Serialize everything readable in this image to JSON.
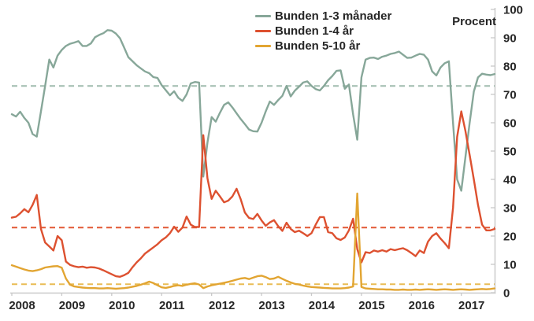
{
  "chart_data": {
    "type": "line",
    "title": "",
    "ylabel": "Procent",
    "ylim": [
      0,
      100
    ],
    "ytick_step": 10,
    "x_start": "2008-01",
    "x_end": "2017-09",
    "freq": "monthly",
    "x_tick_years": [
      "2008",
      "2009",
      "2010",
      "2011",
      "2012",
      "2013",
      "2014",
      "2015",
      "2016",
      "2017"
    ],
    "grid": false,
    "legend_position": "top-center",
    "axis_color": "#c9c9c9",
    "label_color": "#262626",
    "series": [
      {
        "name": "Bunden 1-3 månader",
        "color": "#87a799",
        "dash_color": "#9fbcad",
        "average_dashed_line": 73,
        "values": [
          63,
          62.2,
          63.9,
          61.7,
          60,
          56,
          55.1,
          64,
          73,
          82.3,
          79.5,
          83.7,
          85.7,
          87.1,
          87.9,
          88.3,
          88.8,
          87.1,
          87.1,
          88,
          90.2,
          91,
          91.6,
          92.7,
          92.5,
          91.5,
          89.8,
          86.5,
          83.1,
          81.7,
          80.3,
          79.2,
          78.1,
          77.5,
          76.1,
          75.8,
          73.3,
          71.5,
          69.7,
          71.1,
          68.8,
          67.7,
          70,
          73.9,
          74.4,
          74.2,
          41,
          53,
          62,
          60.4,
          63.5,
          66.3,
          67.2,
          65.4,
          63.3,
          61.3,
          59.5,
          57.6,
          57,
          56.9,
          60,
          64,
          67.5,
          66.3,
          68,
          69.5,
          73,
          69.3,
          71.3,
          72.7,
          74.2,
          74.6,
          73,
          71.9,
          71.4,
          73,
          75,
          76.5,
          78.3,
          78.5,
          72,
          73.5,
          63,
          54,
          76,
          82.3,
          82.9,
          83,
          82.5,
          83.3,
          83.7,
          84.3,
          84.6,
          85.1,
          84,
          82.9,
          83,
          83.7,
          84.3,
          84,
          82.3,
          78.1,
          76.7,
          79.5,
          81,
          81.7,
          60,
          40,
          36,
          48,
          60,
          71,
          76,
          77.3,
          77,
          76.8,
          77.2
        ]
      },
      {
        "name": "Bunden 1-4 år",
        "color": "#dd5130",
        "dash_color": "#e25835",
        "average_dashed_line": 23,
        "values": [
          26.5,
          26.8,
          28,
          29.5,
          28.4,
          31,
          34.5,
          22.5,
          17.7,
          16.3,
          14.9,
          20,
          18.5,
          11,
          9.8,
          9.3,
          9,
          9.2,
          8.8,
          9,
          8.9,
          8.5,
          7.9,
          7.2,
          6.5,
          5.8,
          5.6,
          6.2,
          7,
          9,
          10.7,
          12.1,
          13.8,
          14.9,
          16,
          17.1,
          18.5,
          19.5,
          21,
          23.3,
          21.5,
          23,
          26.9,
          24,
          23.2,
          23.2,
          55.6,
          40.4,
          33.1,
          36,
          34,
          31.9,
          32.5,
          34,
          36.7,
          33,
          28.3,
          26.4,
          26,
          27.8,
          25.5,
          23.6,
          24.8,
          25.6,
          23.5,
          21.8,
          24.7,
          22.5,
          21.4,
          21.9,
          21,
          20,
          21,
          24,
          26.7,
          26.7,
          21.4,
          21,
          19.2,
          18.6,
          19.5,
          22,
          26.1,
          15.4,
          10.7,
          14.3,
          14,
          14.9,
          14.5,
          15,
          14.5,
          15.4,
          15,
          15.4,
          15.7,
          15,
          14,
          12.9,
          14.9,
          14,
          18,
          20,
          21,
          19.1,
          17.5,
          15.7,
          30,
          55,
          64,
          57,
          48.6,
          40,
          31,
          24,
          22,
          22,
          22.5
        ]
      },
      {
        "name": "Bunden 5-10 år",
        "color": "#e2a532",
        "dash_color": "#e9bc55",
        "average_dashed_line": 3,
        "values": [
          9.7,
          9.2,
          8.7,
          8.2,
          7.8,
          7.6,
          7.9,
          8.3,
          8.9,
          9.1,
          9.3,
          9.4,
          8.8,
          5,
          2.8,
          2.2,
          2,
          1.8,
          1.7,
          1.6,
          1.6,
          1.5,
          1.5,
          1.6,
          1.5,
          1.4,
          1.5,
          1.6,
          1.8,
          2.1,
          2.4,
          2.8,
          3.3,
          3.9,
          3.4,
          2.6,
          1.9,
          1.7,
          2,
          2.4,
          2.6,
          2.4,
          2.8,
          3.1,
          3.3,
          2.9,
          1.6,
          2.2,
          2.6,
          2.9,
          3.2,
          3.5,
          3.8,
          4.2,
          4.6,
          5,
          5.2,
          4.8,
          5.3,
          5.8,
          6,
          5.5,
          4.8,
          5,
          5.6,
          4.9,
          4.2,
          3.6,
          3.1,
          2.9,
          2.5,
          2.2,
          2,
          1.9,
          1.8,
          1.7,
          1.6,
          1.5,
          1.5,
          1.5,
          1.6,
          1.8,
          2.2,
          35,
          2,
          1.5,
          1.4,
          1.3,
          1.2,
          1.2,
          1.1,
          1.1,
          1,
          1,
          1.1,
          1,
          1,
          1.1,
          1,
          1.1,
          1.2,
          1.1,
          1,
          1.1,
          1.2,
          1.1,
          1,
          1.1,
          1.2,
          1.1,
          1,
          1.1,
          1.2,
          1.3,
          1.2,
          1.3,
          1.5
        ]
      }
    ]
  }
}
